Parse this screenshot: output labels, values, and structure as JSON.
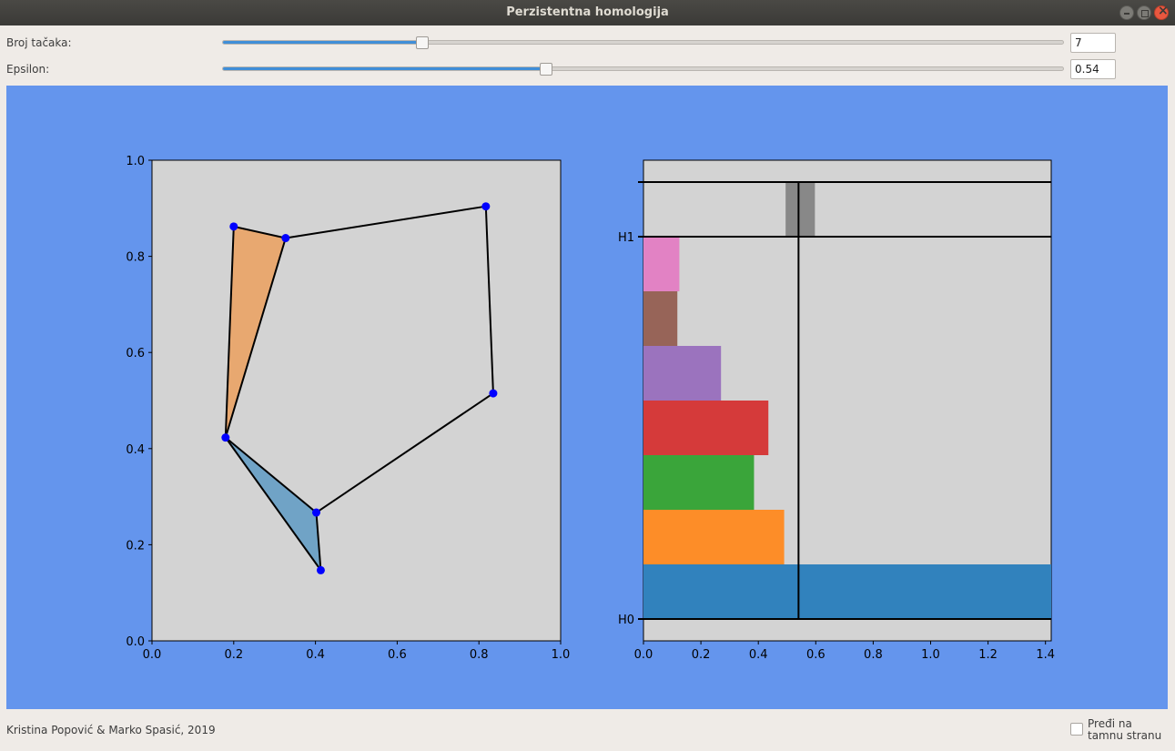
{
  "window": {
    "title": "Perzistentna homologija"
  },
  "controls": {
    "points": {
      "label": "Broj tačaka:",
      "value": "7",
      "fraction": 0.237
    },
    "epsilon": {
      "label": "Epsilon:",
      "value": "0.54",
      "fraction": 0.385
    }
  },
  "footer": {
    "credits": "Kristina Popović & Marko Spasić, 2019",
    "dark_mode_label_line1": "Pređi na",
    "dark_mode_label_line2": "tamnu stranu"
  },
  "colors": {
    "figure_bg": "#6495ed",
    "axes_bg": "#d3d3d3",
    "points": "#0000ff",
    "triangle_top": "#e8a870",
    "triangle_bottom": "#70a3c6",
    "epsilon_line": "#000000"
  },
  "chart_data": [
    {
      "type": "scatter",
      "title": "",
      "xlim": [
        0,
        1
      ],
      "ylim": [
        0,
        1
      ],
      "xticks": [
        "0.0",
        "0.2",
        "0.4",
        "0.6",
        "0.8",
        "1.0"
      ],
      "yticks": [
        "0.0",
        "0.2",
        "0.4",
        "0.6",
        "0.8",
        "1.0"
      ],
      "points": [
        [
          0.2,
          0.862
        ],
        [
          0.327,
          0.838
        ],
        [
          0.817,
          0.904
        ],
        [
          0.835,
          0.515
        ],
        [
          0.18,
          0.423
        ],
        [
          0.402,
          0.267
        ],
        [
          0.413,
          0.147
        ]
      ],
      "edges": [
        [
          0,
          1
        ],
        [
          1,
          2
        ],
        [
          2,
          3
        ],
        [
          3,
          5
        ],
        [
          5,
          6
        ],
        [
          6,
          4
        ],
        [
          4,
          0
        ],
        [
          4,
          1
        ],
        [
          4,
          5
        ]
      ],
      "triangles": [
        {
          "vertices": [
            0,
            1,
            4
          ],
          "color": "#e8a870"
        },
        {
          "vertices": [
            4,
            5,
            6
          ],
          "color": "#70a3c6"
        }
      ]
    },
    {
      "type": "bar",
      "title": "",
      "xlim": [
        0,
        1.42
      ],
      "xticks": [
        "0.0",
        "0.2",
        "0.4",
        "0.6",
        "0.8",
        "1.0",
        "1.2",
        "1.4"
      ],
      "ytick_labels": [
        "H0",
        "H1"
      ],
      "epsilon": 0.54,
      "h0_bars": [
        {
          "start": 0,
          "end": 1.42,
          "color": "#3182bd"
        },
        {
          "start": 0,
          "end": 0.49,
          "color": "#fd8d28"
        },
        {
          "start": 0,
          "end": 0.385,
          "color": "#3aa53a"
        },
        {
          "start": 0,
          "end": 0.435,
          "color": "#d53a3a"
        },
        {
          "start": 0,
          "end": 0.27,
          "color": "#9b73be"
        },
        {
          "start": 0,
          "end": 0.118,
          "color": "#976458"
        },
        {
          "start": 0,
          "end": 0.125,
          "color": "#e282c4"
        }
      ],
      "h1_bars": [
        {
          "start": 0.495,
          "end": 0.597,
          "color": "#888888"
        }
      ]
    }
  ]
}
